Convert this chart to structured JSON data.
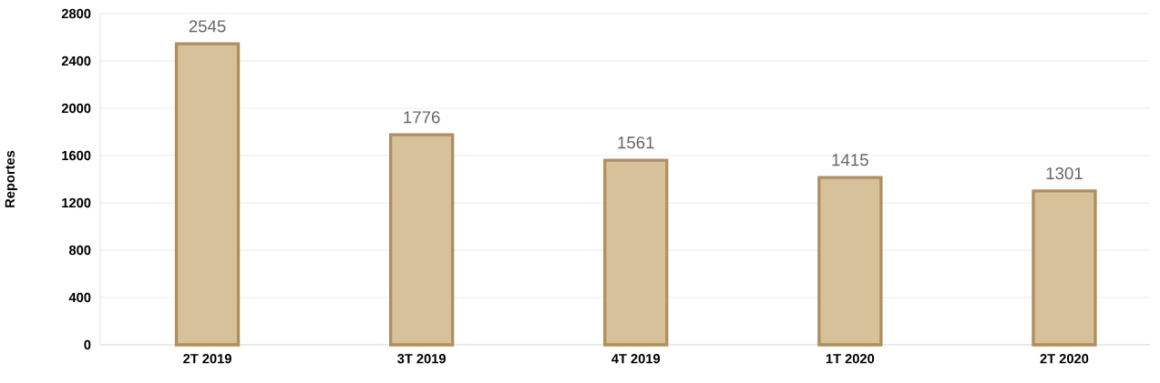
{
  "chart_data": {
    "type": "bar",
    "ylabel": "Reportes",
    "categories": [
      "2T 2019",
      "3T 2019",
      "4T 2019",
      "1T 2020",
      "2T 2020"
    ],
    "values": [
      2545,
      1776,
      1561,
      1415,
      1301
    ],
    "color": "#d6c19b",
    "ylim": [
      0,
      2800
    ],
    "yticks": [
      0,
      400,
      800,
      1200,
      1600,
      2000,
      2400,
      2800
    ],
    "grid": "y",
    "data_labels": true
  }
}
